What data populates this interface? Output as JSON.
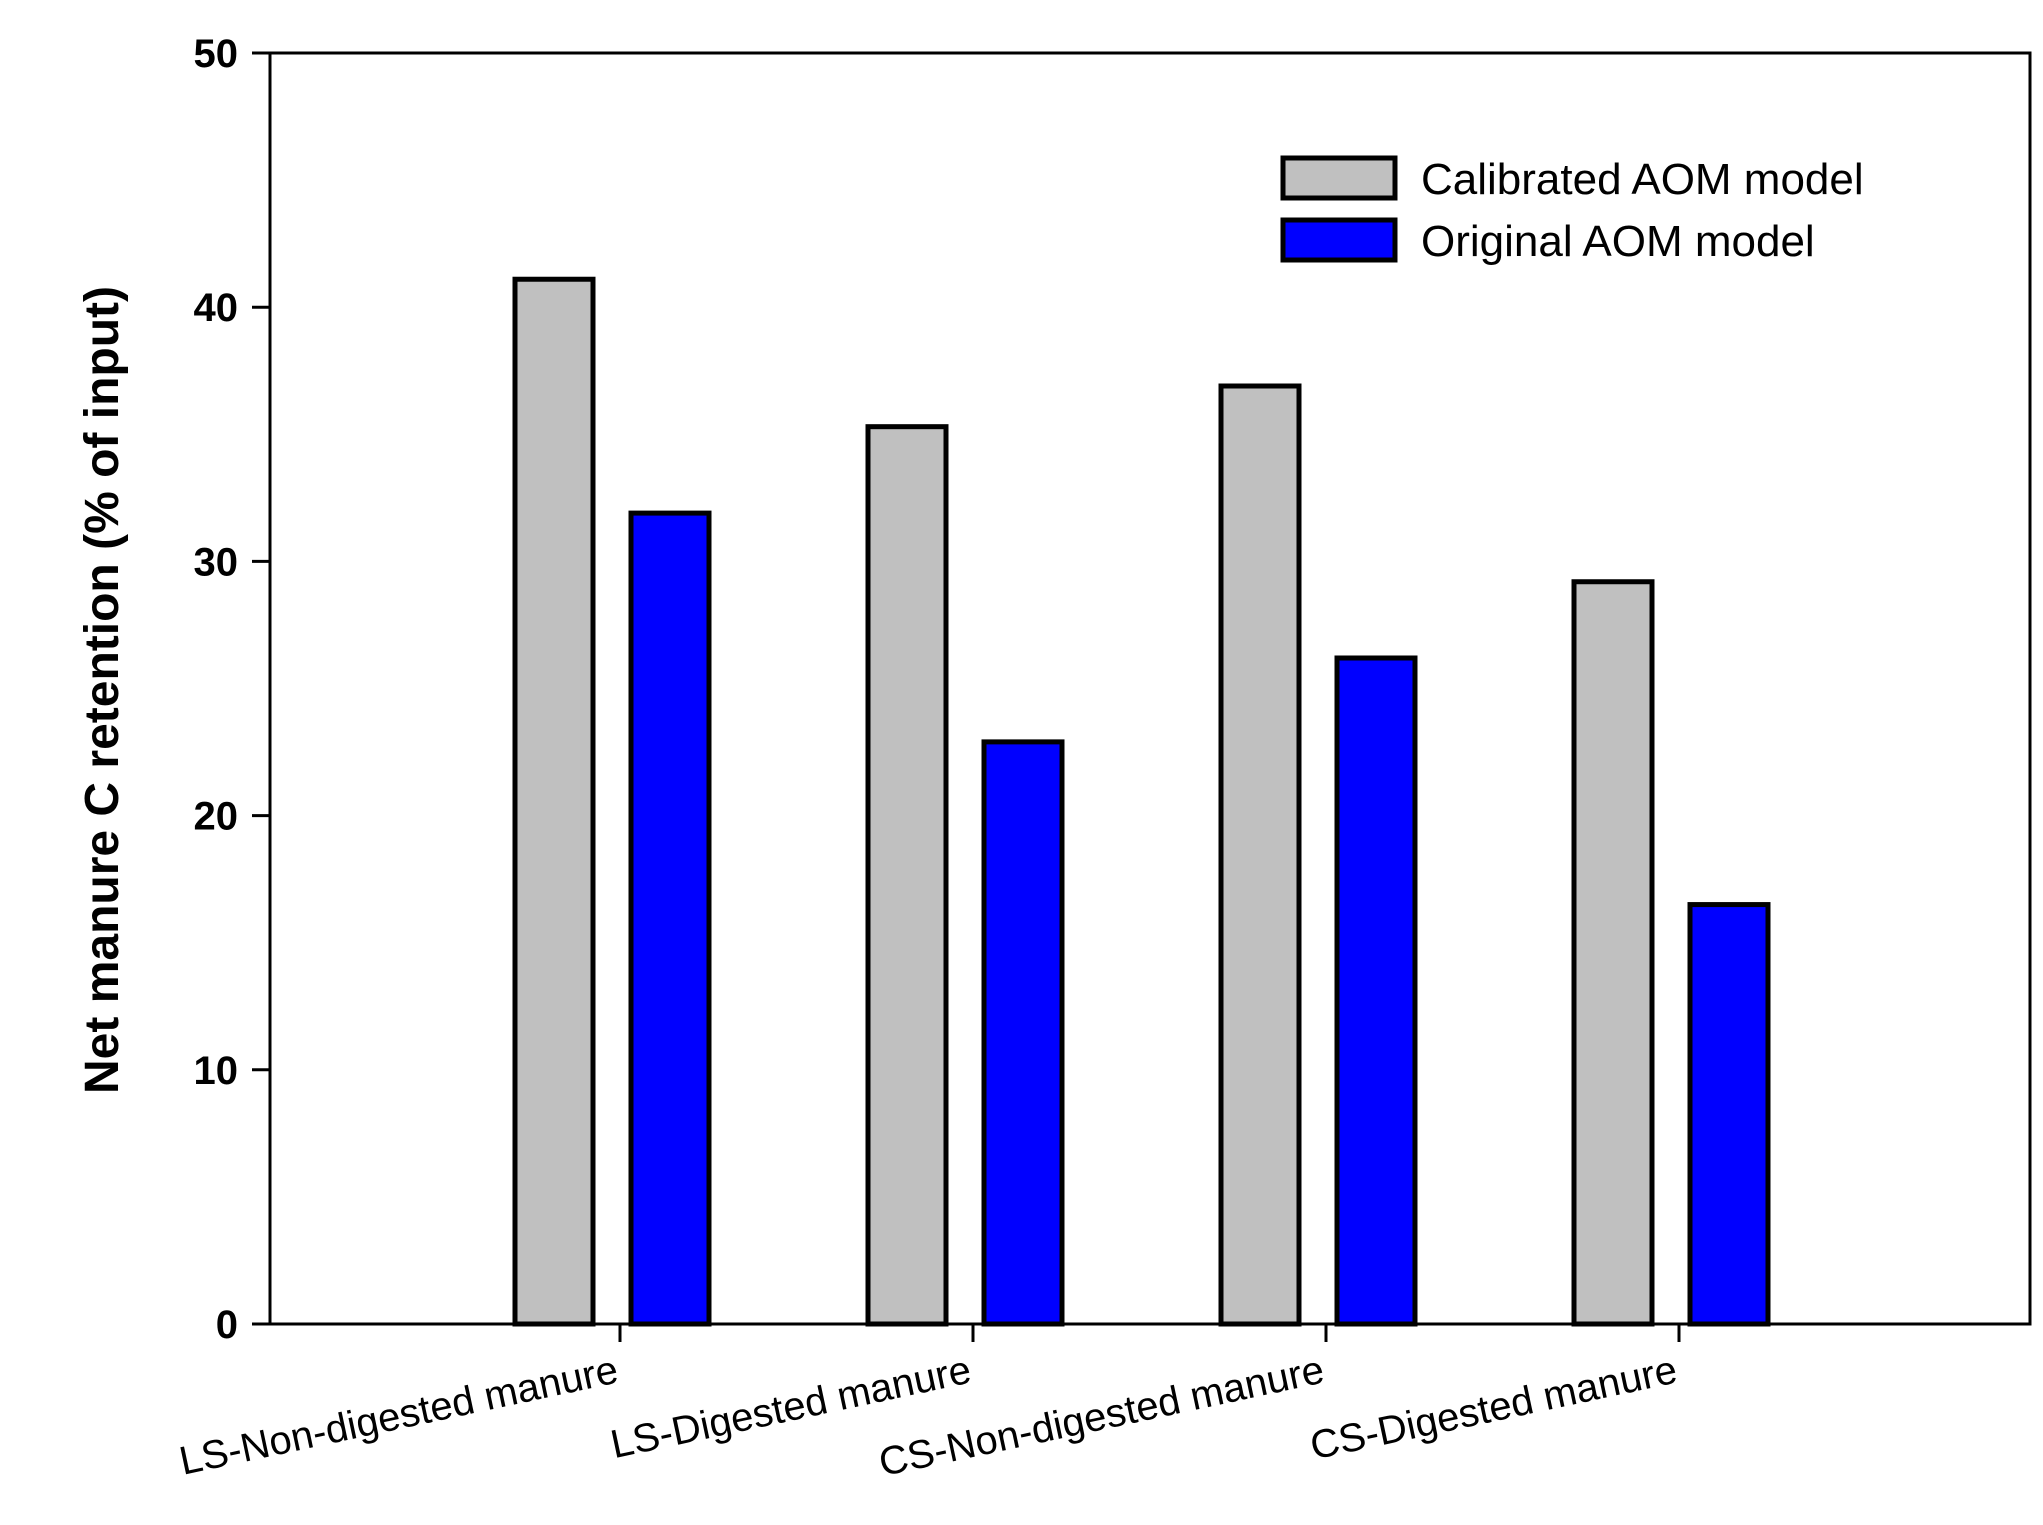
{
  "chart_data": {
    "type": "bar",
    "ylabel": "Net manure C retention (% of input)",
    "xlabel": "",
    "ylim": [
      0,
      50
    ],
    "yticks": [
      0,
      10,
      20,
      30,
      40,
      50
    ],
    "categories": [
      "LS-Non-digested manure",
      "LS-Digested manure",
      "CS-Non-digested manure",
      "CS-Digested manure"
    ],
    "series": [
      {
        "name": "Calibrated AOM model",
        "color": "#c0c0c0",
        "values": [
          41.1,
          35.3,
          36.9,
          29.2
        ]
      },
      {
        "name": "Original AOM model",
        "color": "#0000ff",
        "values": [
          31.9,
          22.9,
          26.2,
          16.5
        ]
      }
    ],
    "legend_position": "top-right",
    "grid": false
  }
}
